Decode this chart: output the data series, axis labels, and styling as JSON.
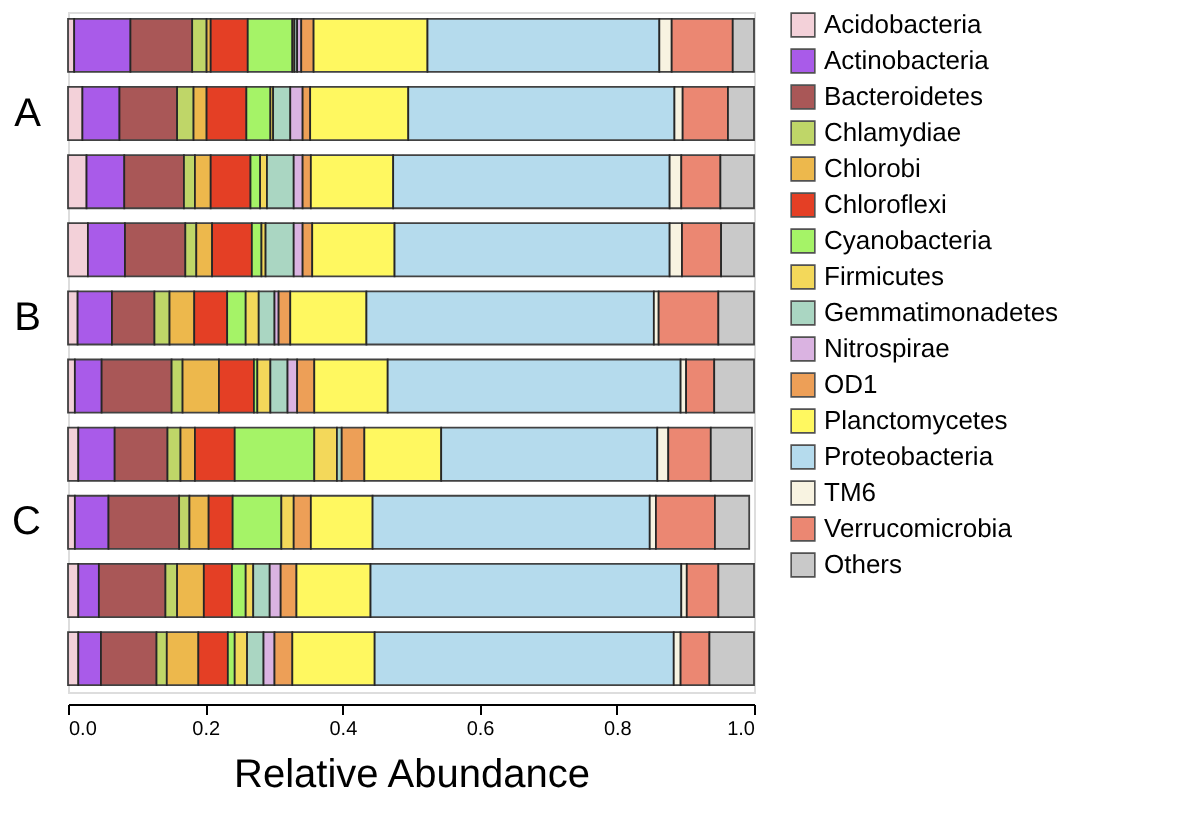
{
  "chart_data": {
    "type": "bar",
    "orientation": "horizontal",
    "stacked": true,
    "xlabel": "Relative Abundance",
    "categories": [
      null,
      "A",
      null,
      null,
      "B",
      null,
      null,
      "C",
      null,
      null
    ],
    "xlim": [
      0,
      1
    ],
    "xticks": [
      {
        "value": 0,
        "label": "0.0"
      },
      0.2,
      0.4,
      0.6,
      0.8,
      {
        "value": 1,
        "label": "1.0"
      }
    ],
    "grid": false,
    "legend": "right",
    "series": [
      {
        "name": "Acidobacteria",
        "color": "#f2c9d3",
        "values": [
          0.009,
          0.021,
          0.027,
          0.029,
          0.014,
          0.01,
          0.015,
          0.01,
          0.015,
          0.015
        ]
      },
      {
        "name": "Actinobacteria",
        "color": "#9b3fe6",
        "values": [
          0.082,
          0.054,
          0.055,
          0.054,
          0.05,
          0.039,
          0.053,
          0.049,
          0.03,
          0.033
        ]
      },
      {
        "name": "Bacteroidetes",
        "color": "#9b3a3a",
        "values": [
          0.09,
          0.084,
          0.087,
          0.088,
          0.062,
          0.102,
          0.077,
          0.103,
          0.097,
          0.081
        ]
      },
      {
        "name": "Chlamydiae",
        "color": "#b5cf4e",
        "values": [
          0.021,
          0.024,
          0.016,
          0.016,
          0.022,
          0.016,
          0.019,
          0.015,
          0.017,
          0.015
        ]
      },
      {
        "name": "Chlorobi",
        "color": "#eaac2d",
        "values": [
          0.006,
          0.019,
          0.023,
          0.023,
          0.036,
          0.053,
          0.021,
          0.028,
          0.039,
          0.046
        ]
      },
      {
        "name": "Chloroflexi",
        "color": "#e01e00",
        "values": [
          0.054,
          0.058,
          0.058,
          0.058,
          0.048,
          0.051,
          0.058,
          0.035,
          0.041,
          0.043
        ]
      },
      {
        "name": "Cyanobacteria",
        "color": "#96f24d",
        "values": [
          0.065,
          0.035,
          0.014,
          0.014,
          0.027,
          0.005,
          0.116,
          0.071,
          0.02,
          0.01
        ]
      },
      {
        "name": "Firmicutes",
        "color": "#f2d23e",
        "values": [
          0.003,
          0.004,
          0.01,
          0.006,
          0.019,
          0.019,
          0.033,
          0.018,
          0.011,
          0.018
        ]
      },
      {
        "name": "Gemmatimonadetes",
        "color": "#9ccfb8",
        "values": [
          0.004,
          0.025,
          0.039,
          0.041,
          0.023,
          0.025,
          0.007,
          null,
          0.024,
          0.024
        ]
      },
      {
        "name": "Nitrospirae",
        "color": "#d4a6dc",
        "values": [
          0.006,
          0.018,
          0.013,
          0.013,
          0.006,
          0.014,
          null,
          null,
          0.016,
          0.016
        ]
      },
      {
        "name": "OD1",
        "color": "#eb8f3a",
        "values": [
          0.018,
          0.011,
          0.012,
          0.014,
          0.017,
          0.025,
          0.033,
          0.025,
          0.023,
          0.026
        ]
      },
      {
        "name": "Planctomycetes",
        "color": "#fff745",
        "values": [
          0.166,
          0.143,
          0.12,
          0.12,
          0.111,
          0.107,
          0.112,
          0.09,
          0.108,
          0.12
        ]
      },
      {
        "name": "Proteobacteria",
        "color": "#a9d5ea",
        "values": [
          0.338,
          0.388,
          0.403,
          0.401,
          0.419,
          0.427,
          0.315,
          0.404,
          0.453,
          0.436
        ]
      },
      {
        "name": "TM6",
        "color": "#f7f2dc",
        "values": [
          0.018,
          0.012,
          0.017,
          0.018,
          0.007,
          0.008,
          0.016,
          0.009,
          0.008,
          0.01
        ]
      },
      {
        "name": "Verrucomicrobia",
        "color": "#e8735a",
        "values": [
          0.089,
          0.066,
          0.057,
          0.057,
          0.087,
          0.041,
          0.062,
          0.086,
          0.046,
          0.042
        ]
      },
      {
        "name": "Others",
        "color": "#c0c0c0",
        "values": [
          0.031,
          0.038,
          0.049,
          0.048,
          0.052,
          0.058,
          0.06,
          0.05,
          0.052,
          0.065
        ]
      }
    ]
  }
}
